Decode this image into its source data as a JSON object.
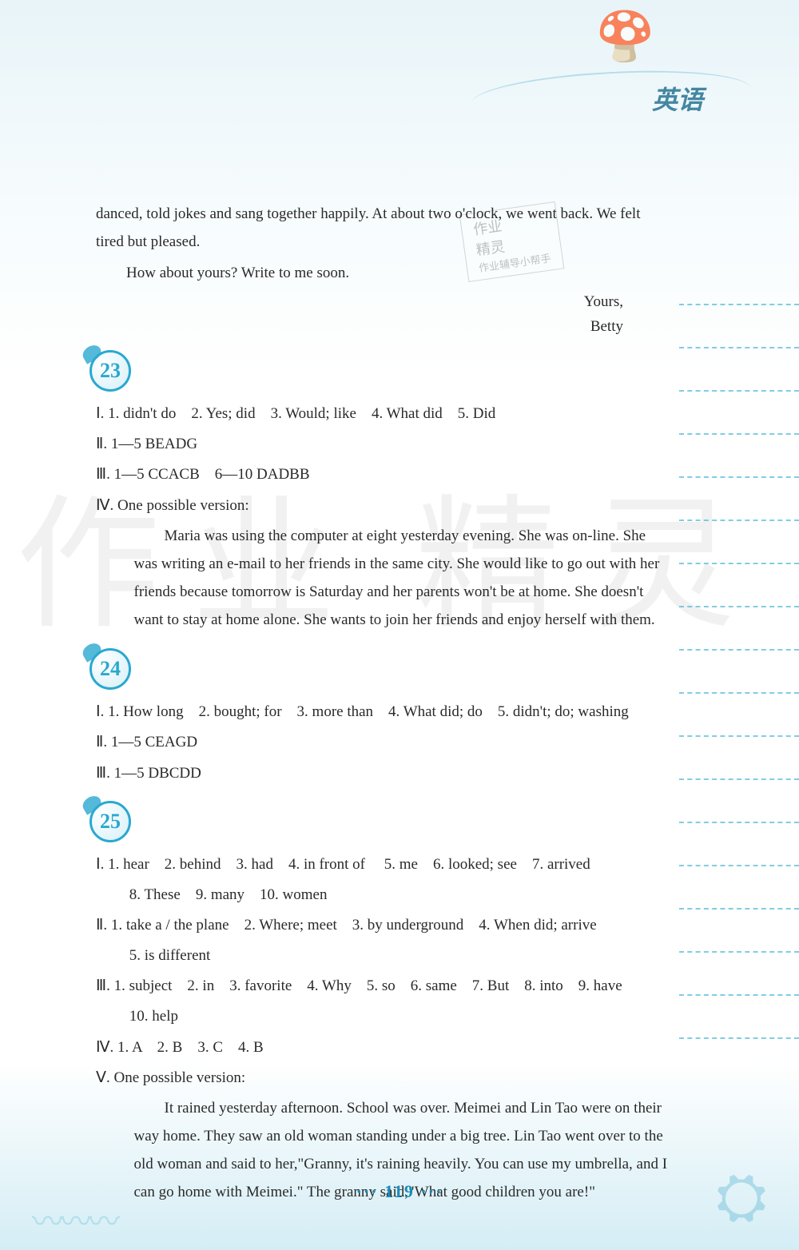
{
  "header": {
    "subject": "英语"
  },
  "stamp": {
    "line1": "作业",
    "line2": "精灵",
    "line3": "作业辅导小帮手"
  },
  "watermark": {
    "left": "作业",
    "right": "精灵"
  },
  "intro": {
    "p1": "danced, told jokes and sang together happily. At about two o'clock, we went back. We felt tired but pleased.",
    "p2": "How about yours? Write to me soon.",
    "sig1": "Yours,",
    "sig2": "Betty"
  },
  "sections": [
    {
      "num": "23",
      "lines": [
        "Ⅰ. 1. didn't do　2. Yes; did　3. Would; like　4. What did　5. Did",
        "Ⅱ. 1—5 BEADG",
        "Ⅲ. 1—5 CCACB　6—10 DADBB",
        "Ⅳ. One possible version:"
      ],
      "essay": "Maria was using the computer at eight yesterday evening. She was on-line. She was writing an e-mail to her friends in the same city. She would like to go out with her friends because tomorrow is Saturday and her parents won't be at home. She doesn't want to stay at home alone. She wants to join her friends and enjoy herself with them."
    },
    {
      "num": "24",
      "lines": [
        "Ⅰ. 1. How long　2. bought; for　3. more than　4. What did; do　5. didn't; do; washing",
        "Ⅱ. 1—5 CEAGD",
        "Ⅲ. 1—5 DBCDD"
      ]
    },
    {
      "num": "25",
      "lines": [
        "Ⅰ. 1. hear　2. behind　3. had　4. in front of　 5. me　6. looked; see　7. arrived",
        "8. These　9. many　10. women",
        "Ⅱ. 1. take a / the plane　2. Where; meet　3. by underground　4. When did; arrive",
        "5. is different",
        "Ⅲ. 1. subject　2. in　3. favorite　4. Why　5. so　6. same　7. But　8. into　9. have",
        "10. help",
        "Ⅳ. 1. A　2. B　3. C　4. B",
        "Ⅴ. One possible version:"
      ],
      "subIndent": [
        1,
        3,
        5
      ],
      "essay": "It rained yesterday afternoon. School was over. Meimei and Lin Tao were on their way home. They saw an old woman standing under a big tree. Lin Tao went over to the old woman and said to her,\"Granny, it's raining heavily. You can use my umbrella, and I can go home with Meimei.\" The granny said,\"What good children you are!\""
    }
  ],
  "pageNumber": "··· 119 ···"
}
